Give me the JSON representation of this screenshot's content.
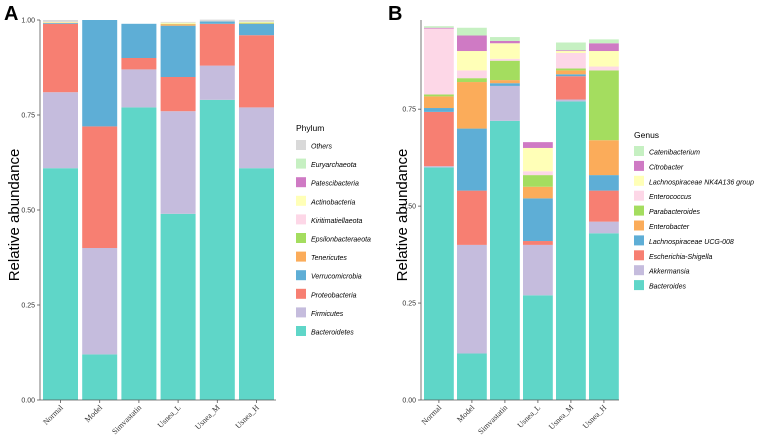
{
  "chart_data": [
    {
      "panel": "A",
      "type": "bar",
      "stacked": true,
      "title": "",
      "xlabel": "",
      "ylabel": "Relative abundance",
      "ylim": [
        0,
        1
      ],
      "yticks": [
        "0.00",
        "0.25",
        "0.50",
        "0.75",
        "1.00"
      ],
      "categories": [
        "Normal",
        "Model",
        "Simvastatin",
        "Usnea_L",
        "Usnea_M",
        "Usnea_H"
      ],
      "legend_title": "Phylum",
      "legend_position": "right",
      "series": [
        {
          "name": "Bacteroidetes",
          "color": "#5fd6c8",
          "values": [
            0.61,
            0.12,
            0.77,
            0.49,
            0.79,
            0.61
          ]
        },
        {
          "name": "Firmicutes",
          "color": "#c5bcdd",
          "values": [
            0.2,
            0.28,
            0.1,
            0.27,
            0.09,
            0.16
          ]
        },
        {
          "name": "Proteobacteria",
          "color": "#f77f72",
          "values": [
            0.18,
            0.32,
            0.03,
            0.09,
            0.11,
            0.19
          ]
        },
        {
          "name": "Verrucomicrobia",
          "color": "#5eaed6",
          "values": [
            0.002,
            0.28,
            0.09,
            0.135,
            0.006,
            0.03
          ]
        },
        {
          "name": "Tenericutes",
          "color": "#fbac5a",
          "values": [
            0.001,
            0.0,
            0.0,
            0.004,
            0.0,
            0.001
          ]
        },
        {
          "name": "Epsilonbacteraeota",
          "color": "#a4dd5f",
          "values": [
            0.0,
            0.0,
            0.0,
            0.001,
            0.0,
            0.002
          ]
        },
        {
          "name": "Kiritimatiellaeota",
          "color": "#fdd7e7",
          "values": [
            0.0,
            0.0,
            0.0,
            0.0,
            0.0,
            0.0
          ]
        },
        {
          "name": "Actinobacteria",
          "color": "#ffffb7",
          "values": [
            0.002,
            0.0,
            0.0,
            0.003,
            0.0,
            0.002
          ]
        },
        {
          "name": "Patescibacteria",
          "color": "#cf7ac4",
          "values": [
            0.0,
            0.0,
            0.0,
            0.0,
            0.0,
            0.0
          ]
        },
        {
          "name": "Euryarchaeota",
          "color": "#c6f0c2",
          "values": [
            0.0,
            0.0,
            0.0,
            0.0,
            0.0,
            0.0
          ]
        },
        {
          "name": "Others",
          "color": "#d9d9d9",
          "values": [
            0.005,
            0.0,
            0.0,
            0.002,
            0.005,
            0.005
          ]
        }
      ]
    },
    {
      "panel": "B",
      "type": "bar",
      "stacked": true,
      "title": "",
      "xlabel": "",
      "ylabel": "Relative abundance",
      "ylim": [
        0,
        0.98
      ],
      "yticks": [
        "0.00",
        "0.25",
        "0.50",
        "0.75"
      ],
      "categories": [
        "Normal",
        "Model",
        "Simvastatin",
        "Usnea_L",
        "Usnea_M",
        "Usnea_H"
      ],
      "legend_title": "Genus",
      "legend_position": "right",
      "series": [
        {
          "name": "Bacteroides",
          "color": "#5fd6c8",
          "values": [
            0.6,
            0.12,
            0.72,
            0.27,
            0.77,
            0.43
          ]
        },
        {
          "name": "Akkermansia",
          "color": "#c5bcdd",
          "values": [
            0.003,
            0.28,
            0.09,
            0.13,
            0.005,
            0.03
          ]
        },
        {
          "name": "Escherichia-Shigella",
          "color": "#f77f72",
          "values": [
            0.14,
            0.14,
            0.0,
            0.01,
            0.06,
            0.08
          ]
        },
        {
          "name": "Lachnospiraceae UCG-008",
          "color": "#5eaed6",
          "values": [
            0.01,
            0.16,
            0.007,
            0.11,
            0.005,
            0.04
          ]
        },
        {
          "name": "Enterobacter",
          "color": "#fbac5a",
          "values": [
            0.03,
            0.12,
            0.008,
            0.03,
            0.01,
            0.09
          ]
        },
        {
          "name": "Parabacteroides",
          "color": "#a4dd5f",
          "values": [
            0.005,
            0.01,
            0.05,
            0.03,
            0.005,
            0.18
          ]
        },
        {
          "name": "Enterococcus",
          "color": "#fdd7e7",
          "values": [
            0.17,
            0.02,
            0.005,
            0.01,
            0.04,
            0.01
          ]
        },
        {
          "name": "Lachnospiraceae NK4A136 group",
          "color": "#ffffb7",
          "values": [
            0.0,
            0.05,
            0.04,
            0.06,
            0.005,
            0.04
          ]
        },
        {
          "name": "Citrobacter",
          "color": "#cf7ac4",
          "values": [
            0.002,
            0.04,
            0.006,
            0.015,
            0.002,
            0.02
          ]
        },
        {
          "name": "Catenibacterium",
          "color": "#c6f0c2",
          "values": [
            0.004,
            0.02,
            0.01,
            0.0,
            0.02,
            0.01
          ]
        }
      ]
    }
  ]
}
